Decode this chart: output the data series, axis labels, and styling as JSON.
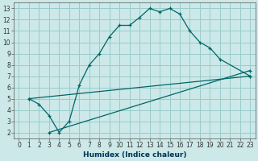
{
  "xlabel": "Humidex (Indice chaleur)",
  "bg_color": "#cce8e8",
  "grid_color": "#99cccc",
  "line_color": "#006666",
  "xlim": [
    -0.5,
    23.5
  ],
  "ylim": [
    1.5,
    13.5
  ],
  "xticks": [
    0,
    1,
    2,
    3,
    4,
    5,
    6,
    7,
    8,
    9,
    10,
    11,
    12,
    13,
    14,
    15,
    16,
    17,
    18,
    19,
    20,
    21,
    22,
    23
  ],
  "yticks": [
    2,
    3,
    4,
    5,
    6,
    7,
    8,
    9,
    10,
    11,
    12,
    13
  ],
  "line1_x": [
    1,
    2,
    3,
    4,
    5,
    6,
    7,
    8,
    9,
    10,
    11,
    12,
    13,
    14,
    15,
    16,
    17,
    18,
    19,
    20,
    23
  ],
  "line1_y": [
    5.0,
    4.5,
    3.5,
    2.0,
    3.0,
    6.2,
    8.0,
    9.0,
    10.5,
    11.5,
    11.5,
    12.2,
    13.0,
    12.7,
    13.0,
    12.5,
    11.0,
    10.0,
    9.5,
    8.5,
    7.0
  ],
  "line2_x": [
    1,
    23
  ],
  "line2_y": [
    5.0,
    7.0
  ],
  "line3_x": [
    3,
    23
  ],
  "line3_y": [
    2.0,
    7.5
  ]
}
